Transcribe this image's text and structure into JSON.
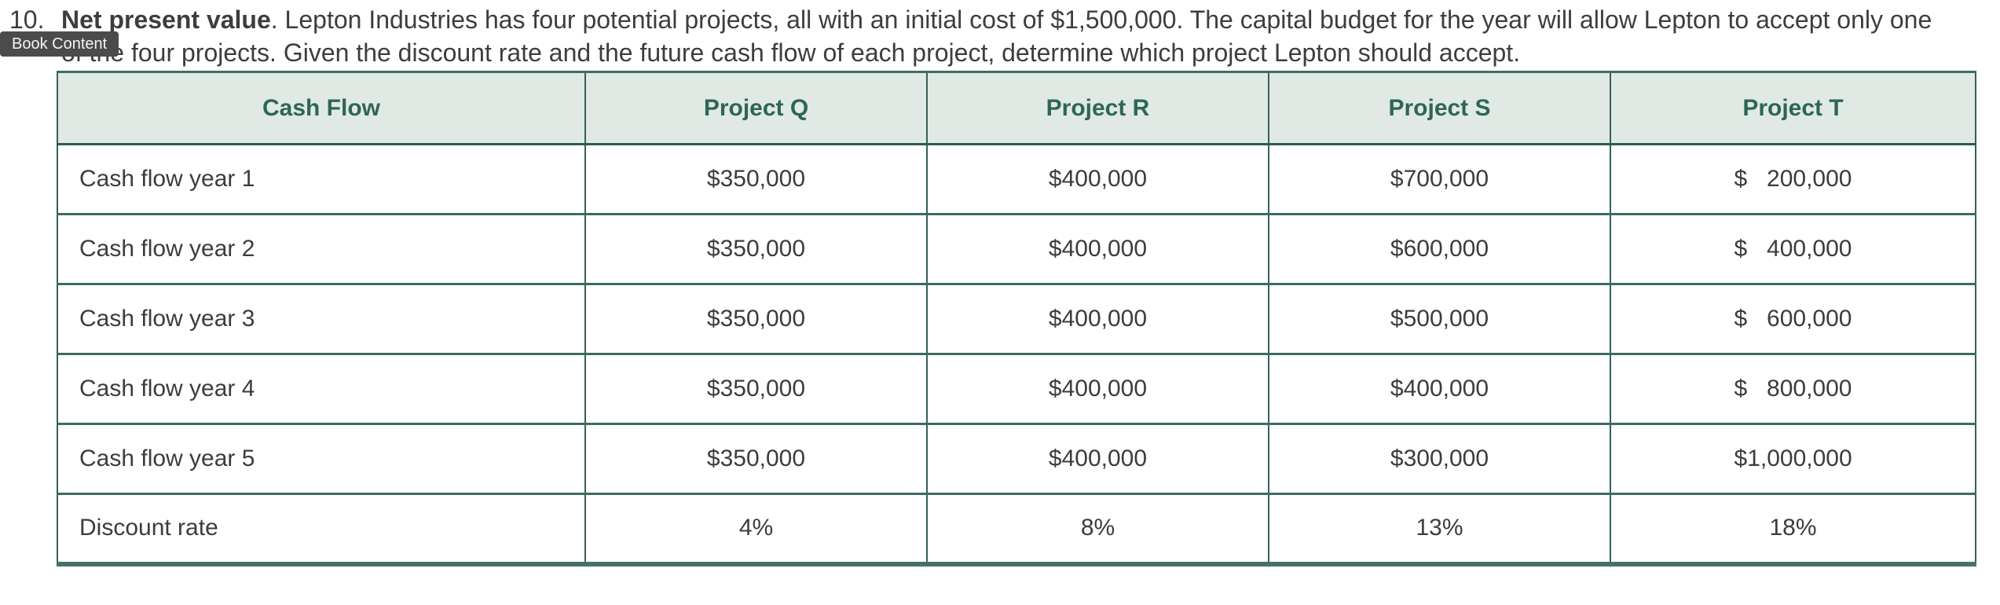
{
  "badge": {
    "label": "Book Content"
  },
  "problem": {
    "number": "10.",
    "title": "Net present value",
    "line1_rest": ". Lepton Industries has four potential projects, all with an initial cost of $1,500,000. The capital budget for the year will allow Lepton to accept only one",
    "line2": "of the four projects. Given the discount rate and the future cash flow of each project, determine which project Lepton should accept."
  },
  "table": {
    "headers": [
      "Cash Flow",
      "Project Q",
      "Project R",
      "Project S",
      "Project T"
    ],
    "rows": [
      {
        "label": "Cash flow year 1",
        "values": [
          "$350,000",
          "$400,000",
          "$700,000",
          {
            "sign": "$",
            "value": "200,000"
          }
        ]
      },
      {
        "label": "Cash flow year 2",
        "values": [
          "$350,000",
          "$400,000",
          "$600,000",
          {
            "sign": "$",
            "value": "400,000"
          }
        ]
      },
      {
        "label": "Cash flow year 3",
        "values": [
          "$350,000",
          "$400,000",
          "$500,000",
          {
            "sign": "$",
            "value": "600,000"
          }
        ]
      },
      {
        "label": "Cash flow year 4",
        "values": [
          "$350,000",
          "$400,000",
          "$400,000",
          {
            "sign": "$",
            "value": "800,000"
          }
        ]
      },
      {
        "label": "Cash flow year 5",
        "values": [
          "$350,000",
          "$400,000",
          "$300,000",
          {
            "sign": "$",
            "value": "1,000,000"
          }
        ]
      },
      {
        "label": "Discount rate",
        "values": [
          "4%",
          "8%",
          "13%",
          "18%"
        ]
      }
    ]
  },
  "colors": {
    "accent_teal": "#346059",
    "header_bg": "#e1e9e5",
    "header_text": "#2d6657",
    "body_text": "#3d3d3d",
    "badge_bg": "#4b4b4b",
    "badge_text": "#f4f4f4"
  }
}
